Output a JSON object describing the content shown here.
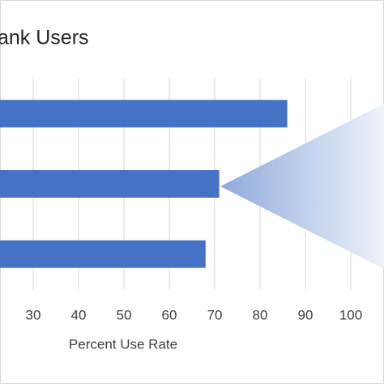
{
  "chart_data": {
    "type": "bar",
    "orientation": "horizontal",
    "title": "ank Users",
    "x_label": "Percent Use Rate",
    "categories": [
      null,
      null,
      null
    ],
    "values": [
      86,
      71,
      68
    ],
    "color": "#4472c4",
    "xlim": [
      0,
      100
    ],
    "xticks": [
      30,
      40,
      50,
      60,
      70,
      80,
      90,
      100
    ],
    "grid": true
  }
}
